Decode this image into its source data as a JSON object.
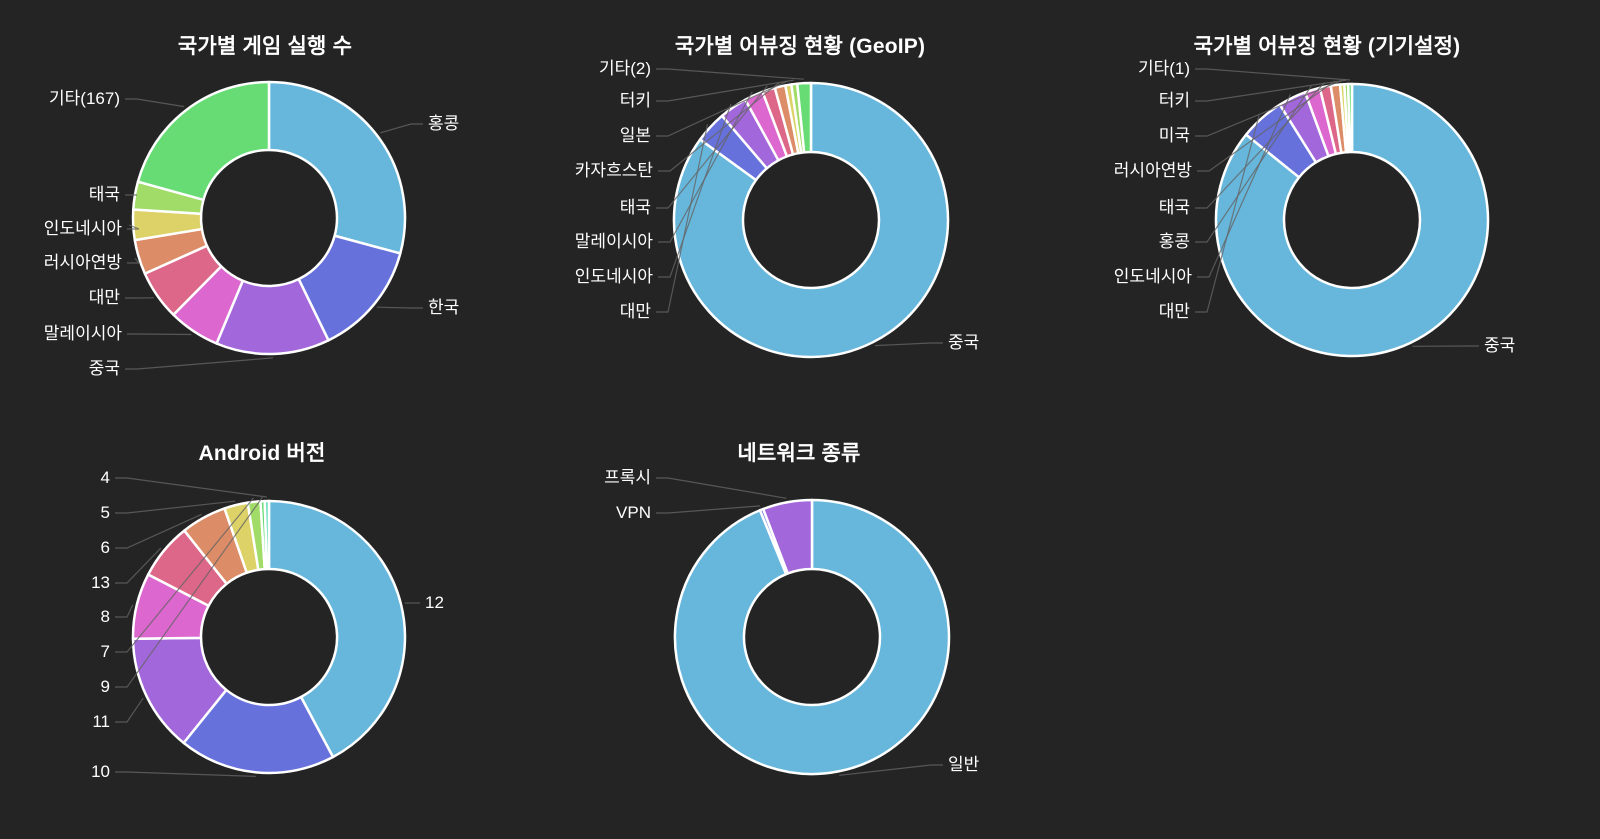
{
  "app": {
    "description": "Dark analytics dashboard with five donut charts",
    "theme": {
      "background": "#242424",
      "text_color": "#ffffff",
      "leader_line_color": "#646464",
      "slice_border_color": "#ffffff"
    }
  },
  "chart_data": [
    {
      "type": "donut",
      "title": "국가별 게임 실행 수",
      "units": "percent (estimated from arc angles)",
      "legend_position": "callout-labels",
      "slices": [
        {
          "label": "홍콩",
          "value_pct": 29.2,
          "color": "#67B7DC"
        },
        {
          "label": "한국",
          "value_pct": 13.6,
          "color": "#6771DC"
        },
        {
          "label": "중국",
          "value_pct": 13.5,
          "color": "#A367DC"
        },
        {
          "label": "말레이시아",
          "value_pct": 6.1,
          "color": "#DC67CE"
        },
        {
          "label": "대만",
          "value_pct": 5.9,
          "color": "#DC6788"
        },
        {
          "label": "러시아연방",
          "value_pct": 4.1,
          "color": "#DC8C67"
        },
        {
          "label": "인도네시아",
          "value_pct": 3.6,
          "color": "#DCD267"
        },
        {
          "label": "태국",
          "value_pct": 3.3,
          "color": "#A0DC67"
        },
        {
          "label": "기타(167)",
          "value_pct": 20.7,
          "color": "#67DC75"
        }
      ]
    },
    {
      "type": "donut",
      "title": "국가별 어뷰징 현황 (GeoIP)",
      "units": "percent (estimated from arc angles)",
      "legend_position": "callout-labels",
      "slices": [
        {
          "label": "중국",
          "value_pct": 85.0,
          "color": "#67B7DC"
        },
        {
          "label": "대만",
          "value_pct": 3.75,
          "color": "#6771DC"
        },
        {
          "label": "인도네시아",
          "value_pct": 3.3,
          "color": "#A367DC"
        },
        {
          "label": "말레이시아",
          "value_pct": 2.2,
          "color": "#DC67CE"
        },
        {
          "label": "태국",
          "value_pct": 1.5,
          "color": "#DC6788"
        },
        {
          "label": "카자흐스탄",
          "value_pct": 1.25,
          "color": "#DC8C67"
        },
        {
          "label": "일본",
          "value_pct": 0.7,
          "color": "#DCD267"
        },
        {
          "label": "터키",
          "value_pct": 0.7,
          "color": "#A0DC67"
        },
        {
          "label": "기타(2)",
          "value_pct": 1.6,
          "color": "#67DC75"
        }
      ]
    },
    {
      "type": "donut",
      "title": "국가별 어뷰징 현황 (기기설정)",
      "units": "percent (estimated from arc angles)",
      "legend_position": "callout-labels",
      "slices": [
        {
          "label": "중국",
          "value_pct": 85.8,
          "color": "#67B7DC"
        },
        {
          "label": "대만",
          "value_pct": 5.3,
          "color": "#6771DC"
        },
        {
          "label": "인도네시아",
          "value_pct": 3.3,
          "color": "#A367DC"
        },
        {
          "label": "홍콩",
          "value_pct": 1.8,
          "color": "#DC67CE"
        },
        {
          "label": "태국",
          "value_pct": 1.3,
          "color": "#DC6788"
        },
        {
          "label": "러시아연방",
          "value_pct": 1.1,
          "color": "#DC8C67"
        },
        {
          "label": "미국",
          "value_pct": 0.5,
          "color": "#DCD267"
        },
        {
          "label": "터키",
          "value_pct": 0.45,
          "color": "#A0DC67"
        },
        {
          "label": "기타(1)",
          "value_pct": 0.45,
          "color": "#67DC75"
        }
      ]
    },
    {
      "type": "donut",
      "title": "Android 버전",
      "units": "percent (estimated from arc angles)",
      "legend_position": "callout-labels",
      "slices": [
        {
          "label": "12",
          "value_pct": 42.2,
          "color": "#67B7DC"
        },
        {
          "label": "10",
          "value_pct": 18.6,
          "color": "#6771DC"
        },
        {
          "label": "11",
          "value_pct": 14.0,
          "color": "#A367DC"
        },
        {
          "label": "8",
          "value_pct": 7.8,
          "color": "#DC67CE"
        },
        {
          "label": "13",
          "value_pct": 6.7,
          "color": "#DC6788"
        },
        {
          "label": "6",
          "value_pct": 5.4,
          "color": "#DC8C67"
        },
        {
          "label": "5",
          "value_pct": 2.8,
          "color": "#DCD267"
        },
        {
          "label": "7",
          "value_pct": 1.5,
          "color": "#A0DC67"
        },
        {
          "label": "9",
          "value_pct": 0.5,
          "color": "#67DC75"
        },
        {
          "label": "4",
          "value_pct": 0.5,
          "color": "#67DCBC"
        }
      ]
    },
    {
      "type": "donut",
      "title": "네트워크 종류",
      "units": "percent (estimated from arc angles)",
      "legend_position": "callout-labels",
      "slices": [
        {
          "label": "일반",
          "value_pct": 93.8,
          "color": "#67B7DC"
        },
        {
          "label": "VPN",
          "value_pct": 0.4,
          "color": "#6771DC"
        },
        {
          "label": "프록시",
          "value_pct": 5.8,
          "color": "#A367DC"
        }
      ]
    }
  ]
}
